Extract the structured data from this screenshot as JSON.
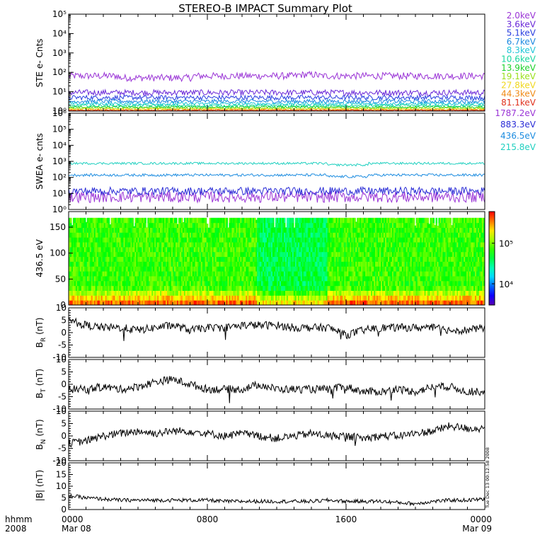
{
  "title": "STEREO-B IMPACT Summary Plot",
  "stamp": "Tue Dec 13 00:12:58 2008",
  "x_axis": {
    "corner_labels": [
      "hhmm",
      "2008"
    ],
    "ticks": [
      {
        "time": "0000",
        "date": "Mar 08",
        "hour": 0
      },
      {
        "time": "0800",
        "date": "",
        "hour": 8
      },
      {
        "time": "1600",
        "date": "",
        "hour": 16
      },
      {
        "time": "0000",
        "date": "Mar 09",
        "hour": 24
      }
    ],
    "range_hours": [
      0,
      24
    ]
  },
  "colorbar": {
    "scale": "log",
    "tick_labels": [
      "10⁵",
      "10⁴"
    ],
    "tick_values": [
      100000,
      10000
    ],
    "range": [
      3000,
      600000
    ]
  },
  "chart_data": [
    {
      "type": "line",
      "panel": "ste",
      "ylabel": "STE e- Cnts",
      "yscale": "log",
      "ylim": [
        1,
        100000
      ],
      "yticks": [
        "10⁰",
        "10¹",
        "10²",
        "10³",
        "10⁴",
        "10⁵"
      ],
      "series": [
        {
          "name": "2.0keV",
          "color": "#9a34d6",
          "level": 65,
          "noise": 0.18
        },
        {
          "name": "3.6keV",
          "color": "#6a28d8",
          "level": 9,
          "noise": 0.15
        },
        {
          "name": "5.1keV",
          "color": "#2a3fe0",
          "level": 5,
          "noise": 0.12
        },
        {
          "name": "6.7keV",
          "color": "#1c88e0",
          "level": 3.2,
          "noise": 0.1
        },
        {
          "name": "8.3keV",
          "color": "#20c6d8",
          "level": 2.4,
          "noise": 0.08
        },
        {
          "name": "10.6keV",
          "color": "#19d6a0",
          "level": 1.9,
          "noise": 0.07
        },
        {
          "name": "13.9keV",
          "color": "#1cd22a",
          "level": 1.6,
          "noise": 0.06
        },
        {
          "name": "19.1keV",
          "color": "#9ae01c",
          "level": 1.4,
          "noise": 0.05
        },
        {
          "name": "27.8keV",
          "color": "#f0d71c",
          "level": 1.25,
          "noise": 0.05
        },
        {
          "name": "44.3keV",
          "color": "#f08a14",
          "level": 1.15,
          "noise": 0.04
        },
        {
          "name": "81.1keV",
          "color": "#e0301c",
          "level": 1.08,
          "noise": 0.03
        }
      ]
    },
    {
      "type": "line",
      "panel": "swea",
      "ylabel": "SWEA e- cnts",
      "yscale": "log",
      "ylim": [
        1,
        1000000
      ],
      "yticks": [
        "10⁰",
        "10¹",
        "10²",
        "10³",
        "10⁴",
        "10⁵",
        "10⁶"
      ],
      "series": [
        {
          "name": "1787.2eV",
          "color": "#9a34d6",
          "level": 6,
          "noise": 0.35
        },
        {
          "name": "883.3eV",
          "color": "#2a2cd6",
          "level": 14,
          "noise": 0.25
        },
        {
          "name": "436.5eV",
          "color": "#1c8ce0",
          "level": 140,
          "noise": 0.08
        },
        {
          "name": "215.8eV",
          "color": "#20d0c0",
          "level": 750,
          "noise": 0.07
        }
      ]
    },
    {
      "type": "heatmap",
      "panel": "pad",
      "ylabel": "436.5 eV",
      "ylim": [
        0,
        180
      ],
      "yticks": [
        0,
        50,
        100,
        150
      ],
      "y_top_edge": 168,
      "value_range": [
        3000,
        600000
      ],
      "low_pitch_high_value": true
    },
    {
      "type": "line",
      "panel": "br",
      "ylabel": "B_R (nT)",
      "ylabel_main": "B",
      "ylabel_sub": "R",
      "ylabel_unit": "(nT)",
      "ylim": [
        -10,
        10
      ],
      "yticks": [
        -10,
        -5,
        0,
        5,
        10
      ],
      "hours": [
        0,
        1,
        2,
        3,
        4,
        5,
        6,
        7,
        8,
        9,
        10,
        11,
        12,
        13,
        14,
        15,
        16,
        17,
        18,
        19,
        20,
        21,
        22,
        23,
        24
      ],
      "values": [
        5,
        3,
        2,
        2,
        1,
        2,
        3,
        1,
        2,
        2,
        3,
        3,
        3,
        2,
        2,
        2,
        -1,
        1,
        2,
        2,
        2,
        2,
        1,
        1,
        2
      ]
    },
    {
      "type": "line",
      "panel": "bt",
      "ylabel": "B_T (nT)",
      "ylabel_main": "B",
      "ylabel_sub": "T",
      "ylabel_unit": "(nT)",
      "ylim": [
        -10,
        10
      ],
      "yticks": [
        -10,
        -5,
        0,
        5,
        10
      ],
      "hours": [
        0,
        1,
        2,
        3,
        4,
        5,
        6,
        7,
        8,
        9,
        10,
        11,
        12,
        13,
        14,
        15,
        16,
        17,
        18,
        19,
        20,
        21,
        22,
        23,
        24
      ],
      "values": [
        -2,
        -2,
        -1,
        -2,
        -1,
        1,
        2,
        0,
        -2,
        -2,
        -2,
        0,
        -2,
        -2,
        -2,
        -2,
        -1,
        -3,
        -3,
        -2,
        -3,
        -1,
        -1,
        -3,
        -3
      ]
    },
    {
      "type": "line",
      "panel": "bn",
      "ylabel": "B_N (nT)",
      "ylabel_main": "B",
      "ylabel_sub": "N",
      "ylabel_unit": "(nT)",
      "ylim": [
        -10,
        10
      ],
      "yticks": [
        -10,
        -5,
        0,
        5,
        10
      ],
      "hours": [
        0,
        1,
        2,
        3,
        4,
        5,
        6,
        7,
        8,
        9,
        10,
        11,
        12,
        13,
        14,
        15,
        16,
        17,
        18,
        19,
        20,
        21,
        22,
        23,
        24
      ],
      "values": [
        -3,
        -2,
        0,
        1,
        2,
        1,
        2,
        2,
        1,
        0,
        1,
        0,
        -1,
        0,
        1,
        0,
        0,
        -1,
        0,
        0,
        1,
        2,
        4,
        3,
        3
      ]
    },
    {
      "type": "line",
      "panel": "bmag",
      "ylabel": "|B| (nT)",
      "ylim": [
        0,
        20
      ],
      "yticks": [
        0,
        5,
        10,
        15,
        20
      ],
      "hours": [
        0,
        1,
        2,
        3,
        4,
        5,
        6,
        7,
        8,
        9,
        10,
        11,
        12,
        13,
        14,
        15,
        16,
        17,
        18,
        19,
        20,
        21,
        22,
        23,
        24
      ],
      "values": [
        6,
        5,
        4.5,
        4,
        4,
        4,
        4,
        4,
        4,
        3.5,
        3.5,
        3.5,
        3.5,
        3.5,
        3.5,
        4,
        3.5,
        3.5,
        3.5,
        3,
        2.5,
        3.5,
        4,
        4,
        4.5
      ]
    }
  ]
}
